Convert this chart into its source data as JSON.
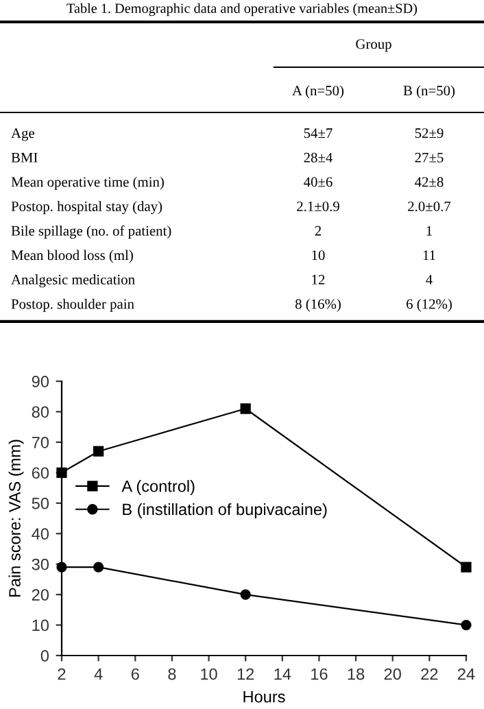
{
  "chart_data": [
    {
      "type": "other",
      "title": "Table 1. Demographic data and operative variables (mean±SD)",
      "subtitle": "Group",
      "annotations": [
        "A (n=50)",
        "B (n=50)",
        "Age",
        "54±7",
        "52±9",
        "BMI",
        "28±4",
        "27±5",
        "Mean operative time (min)",
        "40±6",
        "42±8",
        "Postop. hospital stay (day)",
        "2.1±0.9",
        "2.0±0.7",
        "Bile spillage (no. of patient)",
        "2",
        "1",
        "Mean blood loss (ml)",
        "10",
        "11",
        "Analgesic medication",
        "12",
        "4",
        "Postop. shoulder pain",
        "8 (16%)",
        "6 (12%)"
      ]
    },
    {
      "type": "line",
      "xlabel": "Hours",
      "ylabel": "Pain score: VAS (mm)",
      "xlim": [
        2,
        24
      ],
      "xticks": [
        2,
        4,
        6,
        8,
        10,
        12,
        14,
        16,
        18,
        20,
        22,
        24
      ],
      "ylim": [
        0,
        90
      ],
      "yticks": [
        0,
        10,
        20,
        30,
        40,
        50,
        60,
        70,
        80,
        90
      ],
      "grid": false,
      "legend": "left",
      "series": [
        {
          "name": "A (control)",
          "color": "#000000",
          "marker": "square",
          "x": [
            2,
            4,
            12,
            24
          ],
          "values": [
            60,
            67,
            81,
            29
          ]
        },
        {
          "name": "B (instillation of bupivacaine)",
          "color": "#000000",
          "marker": "circle",
          "x": [
            2,
            4,
            12,
            24
          ],
          "values": [
            29,
            29,
            20,
            10
          ]
        }
      ]
    }
  ]
}
